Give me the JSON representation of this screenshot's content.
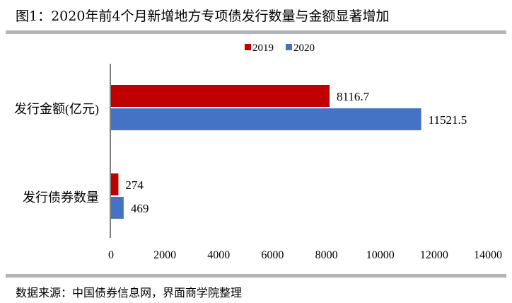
{
  "title": "图1：2020年前4个月新增地方专项债发行数量与金额显著增加",
  "source": "数据来源：中国债券信息网，界面商学院整理",
  "chart_data": {
    "type": "bar",
    "orientation": "horizontal",
    "categories": [
      "发行金额(亿元)",
      "发行债券数量"
    ],
    "series": [
      {
        "name": "2019",
        "color": "#c00000",
        "values": [
          8116.7,
          274
        ],
        "labels": [
          "8116.7",
          "274"
        ]
      },
      {
        "name": "2020",
        "color": "#4472c4",
        "values": [
          11521.5,
          469
        ],
        "labels": [
          "11521.5",
          "469"
        ]
      }
    ],
    "xlim": [
      0,
      14000
    ],
    "xticks": [
      0,
      2000,
      4000,
      6000,
      8000,
      10000,
      12000,
      14000
    ],
    "legend": "top-center",
    "grid": false
  }
}
